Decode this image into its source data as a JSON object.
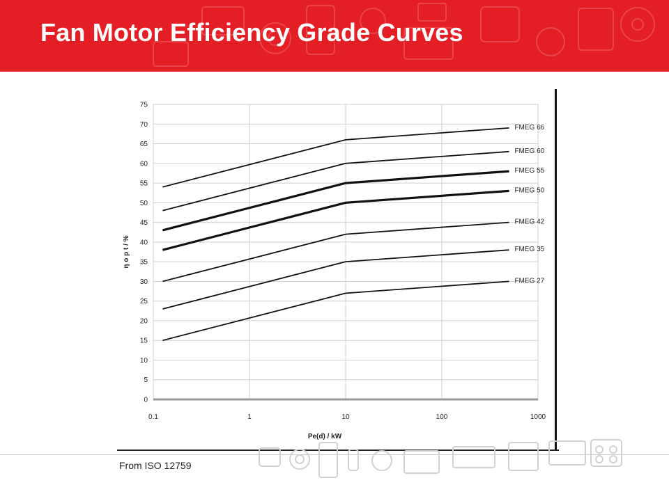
{
  "slide": {
    "title": "Fan Motor Efficiency Grade Curves",
    "source_note": "From ISO 12759",
    "brand_color": "#e31e24"
  },
  "chart_data": {
    "type": "line",
    "x_scale": "log",
    "xlim": [
      0.1,
      1000
    ],
    "ylim": [
      0,
      75
    ],
    "x_ticks": [
      "0.1",
      "1",
      "10",
      "100",
      "1000"
    ],
    "y_ticks": [
      "0",
      "5",
      "10",
      "15",
      "20",
      "25",
      "30",
      "35",
      "40",
      "45",
      "50",
      "55",
      "60",
      "65",
      "70",
      "75"
    ],
    "xlabel": "Pe(d)  / kW",
    "ylabel": "η o p t / %",
    "grid": true,
    "x": [
      0.125,
      10,
      500
    ],
    "series": [
      {
        "name": "FMEG 66",
        "values": [
          54,
          66,
          69
        ],
        "bold": false
      },
      {
        "name": "FMEG 60",
        "values": [
          48,
          60,
          63
        ],
        "bold": false
      },
      {
        "name": "FMEG 55",
        "values": [
          43,
          55,
          58
        ],
        "bold": true
      },
      {
        "name": "FMEG 50",
        "values": [
          38,
          50,
          53
        ],
        "bold": true
      },
      {
        "name": "FMEG 42",
        "values": [
          30,
          42,
          45
        ],
        "bold": false
      },
      {
        "name": "FMEG 35",
        "values": [
          23,
          35,
          38
        ],
        "bold": false
      },
      {
        "name": "FMEG 27",
        "values": [
          15,
          27,
          30
        ],
        "bold": false
      }
    ]
  }
}
